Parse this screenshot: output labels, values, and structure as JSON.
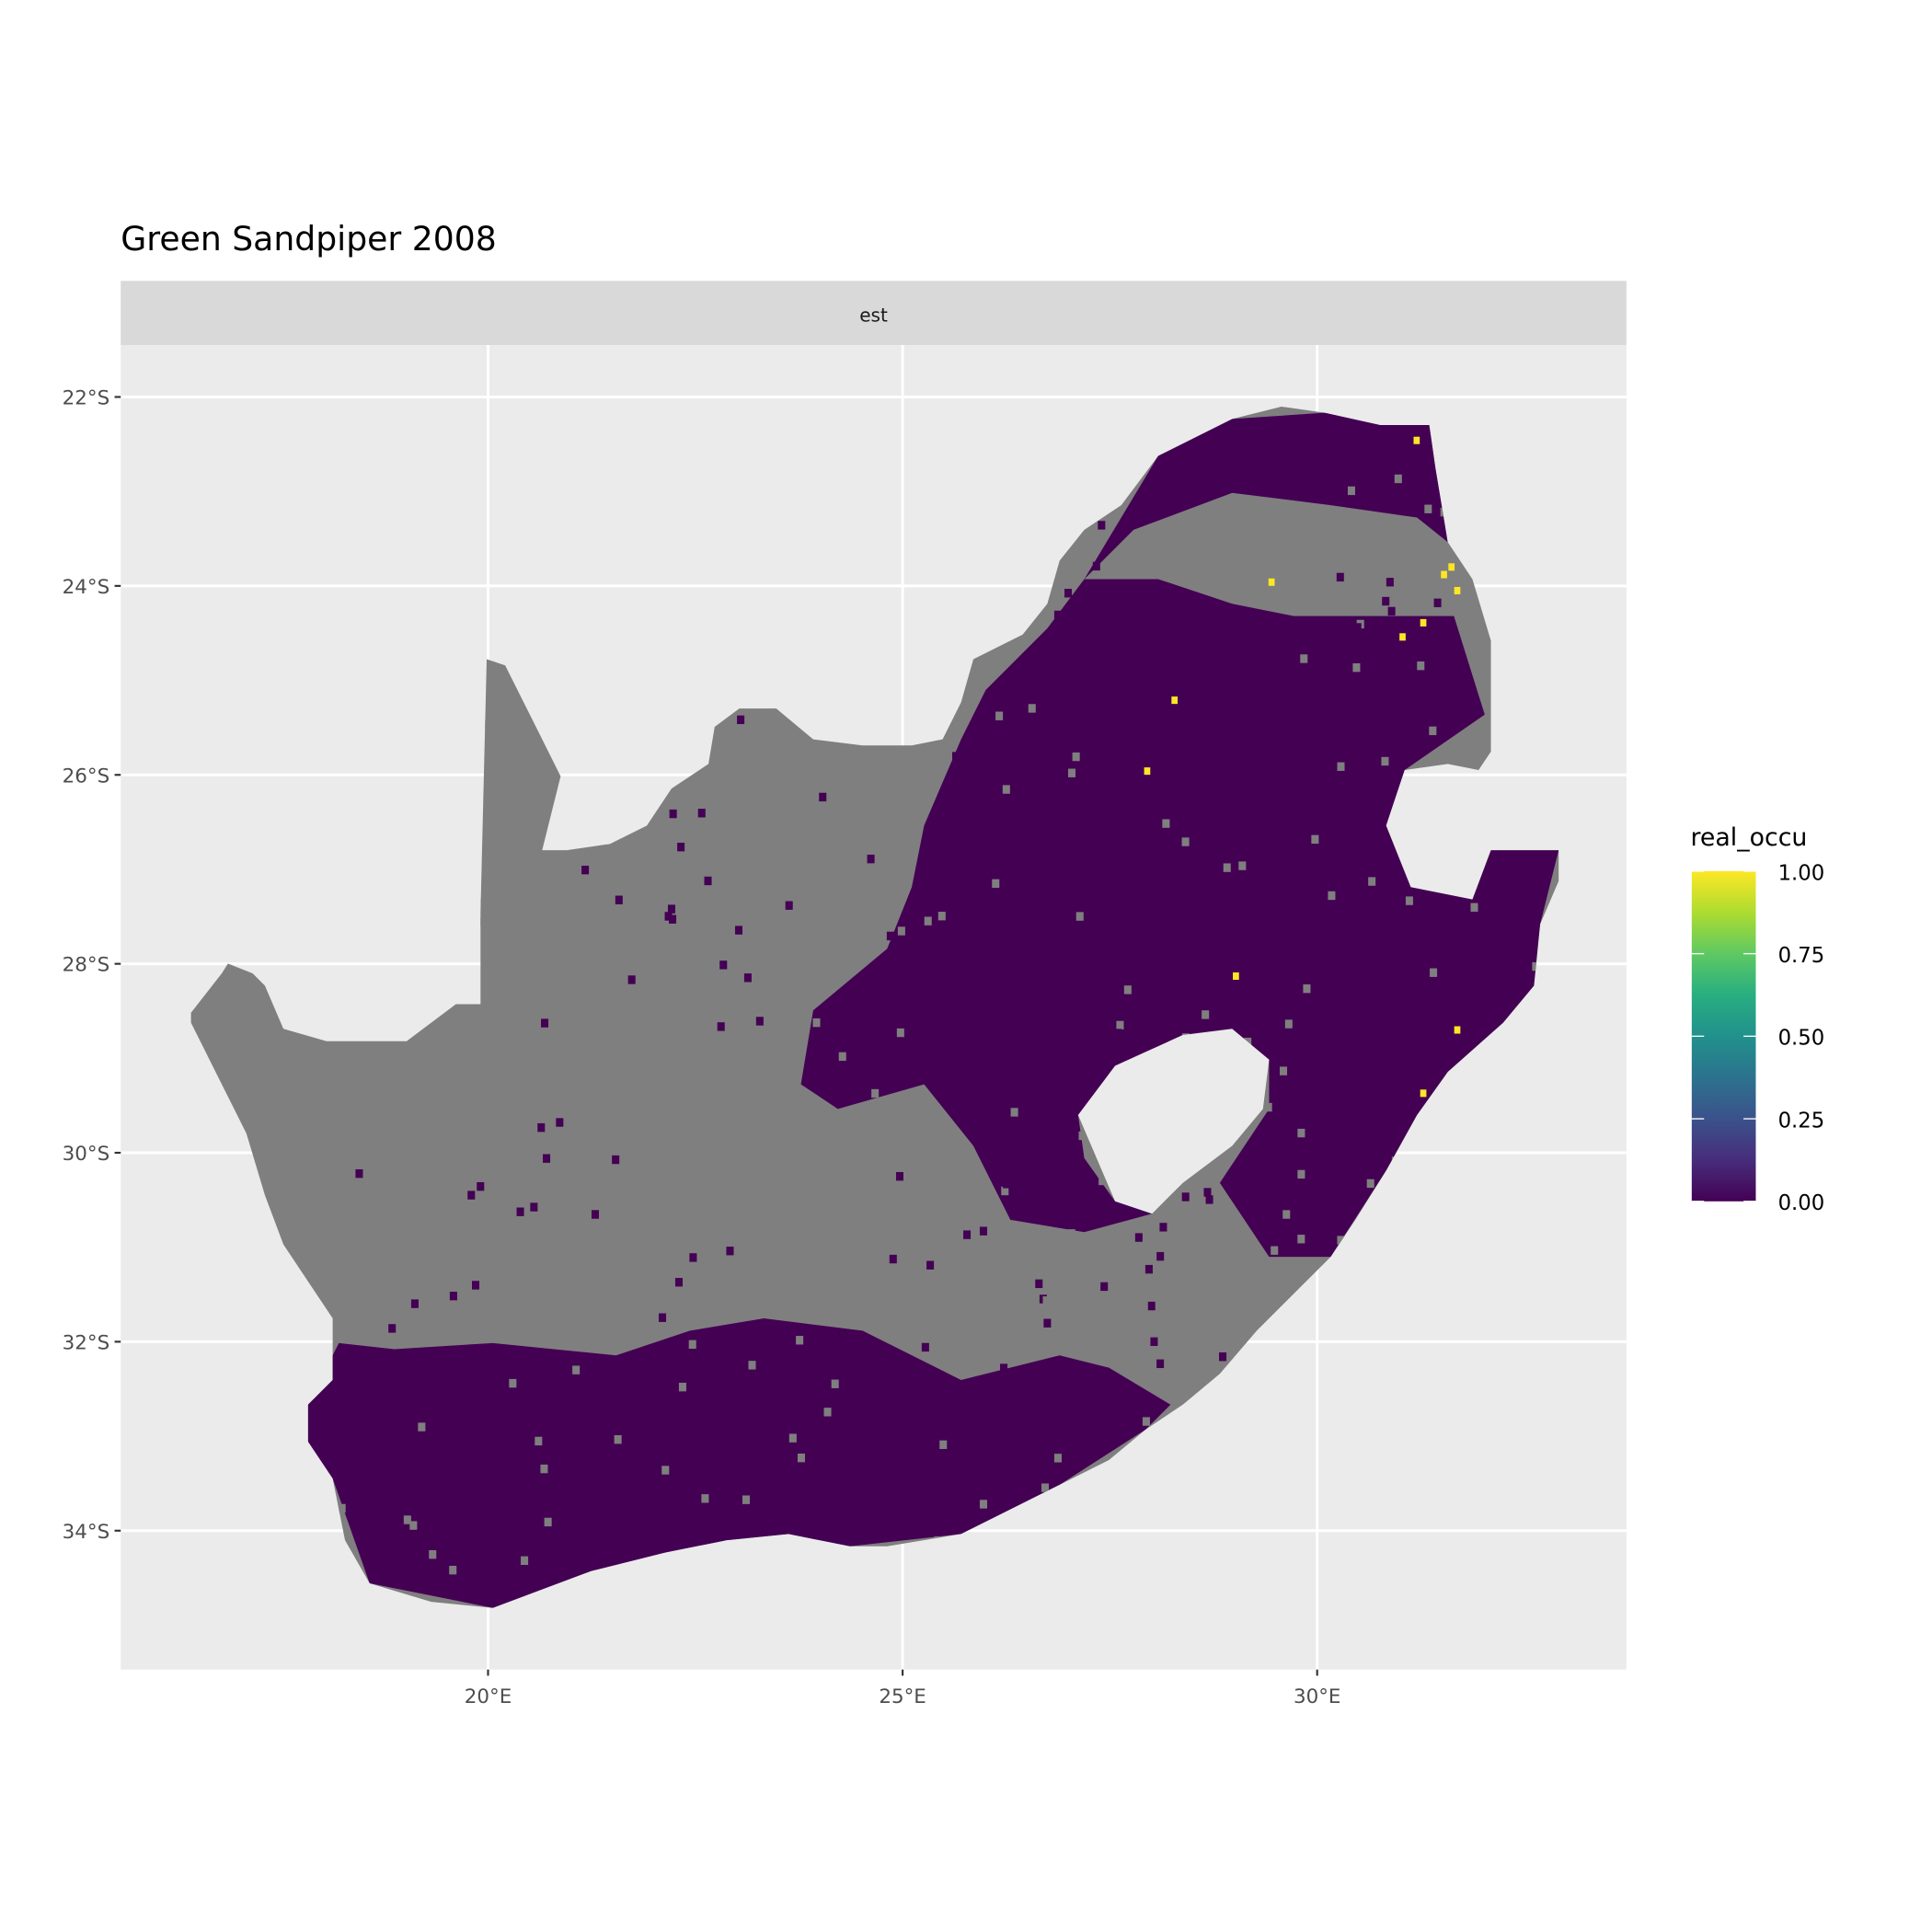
{
  "chart_data": {
    "type": "heatmap",
    "title": "Green Sandpiper 2008",
    "facet_label": "est",
    "xlabel": "",
    "ylabel": "",
    "x_ticks": [
      "20°E",
      "25°E",
      "30°E"
    ],
    "x_tick_values": [
      20,
      25,
      30
    ],
    "y_ticks": [
      "22°S",
      "24°S",
      "26°S",
      "28°S",
      "30°S",
      "32°S",
      "34°S"
    ],
    "y_tick_values": [
      -22,
      -24,
      -26,
      -28,
      -30,
      -32,
      -34
    ],
    "xlim": [
      15.57,
      33.73
    ],
    "ylim": [
      -35.47,
      -21.45
    ],
    "grid": true,
    "legend": {
      "title": "real_occu",
      "position": "right",
      "labels": [
        "1.00",
        "0.75",
        "0.50",
        "0.25",
        "0.00"
      ],
      "values": [
        1.0,
        0.75,
        0.5,
        0.25,
        0.0
      ],
      "colormap": "viridis",
      "range": [
        0,
        1
      ]
    },
    "colors": {
      "na_cells": "#7f7f7f",
      "zero_cells": "#440154",
      "one_cells": "#fde725",
      "panel_bg": "#ebebeb",
      "strip_bg": "#d9d9d9"
    },
    "occupied_cells": [
      {
        "lon": 31.2,
        "lat": -22.46,
        "value": 1
      },
      {
        "lon": 31.62,
        "lat": -23.8,
        "value": 1
      },
      {
        "lon": 31.53,
        "lat": -23.88,
        "value": 1
      },
      {
        "lon": 31.69,
        "lat": -24.05,
        "value": 1
      },
      {
        "lon": 31.28,
        "lat": -24.39,
        "value": 1
      },
      {
        "lon": 31.03,
        "lat": -24.54,
        "value": 1
      },
      {
        "lon": 29.45,
        "lat": -23.96,
        "value": 1
      },
      {
        "lon": 28.28,
        "lat": -25.21,
        "value": 1
      },
      {
        "lon": 27.95,
        "lat": -25.96,
        "value": 1
      },
      {
        "lon": 29.02,
        "lat": -28.13,
        "value": 1
      },
      {
        "lon": 31.69,
        "lat": -28.7,
        "value": 1
      },
      {
        "lon": 31.28,
        "lat": -29.37,
        "value": 1
      }
    ]
  }
}
